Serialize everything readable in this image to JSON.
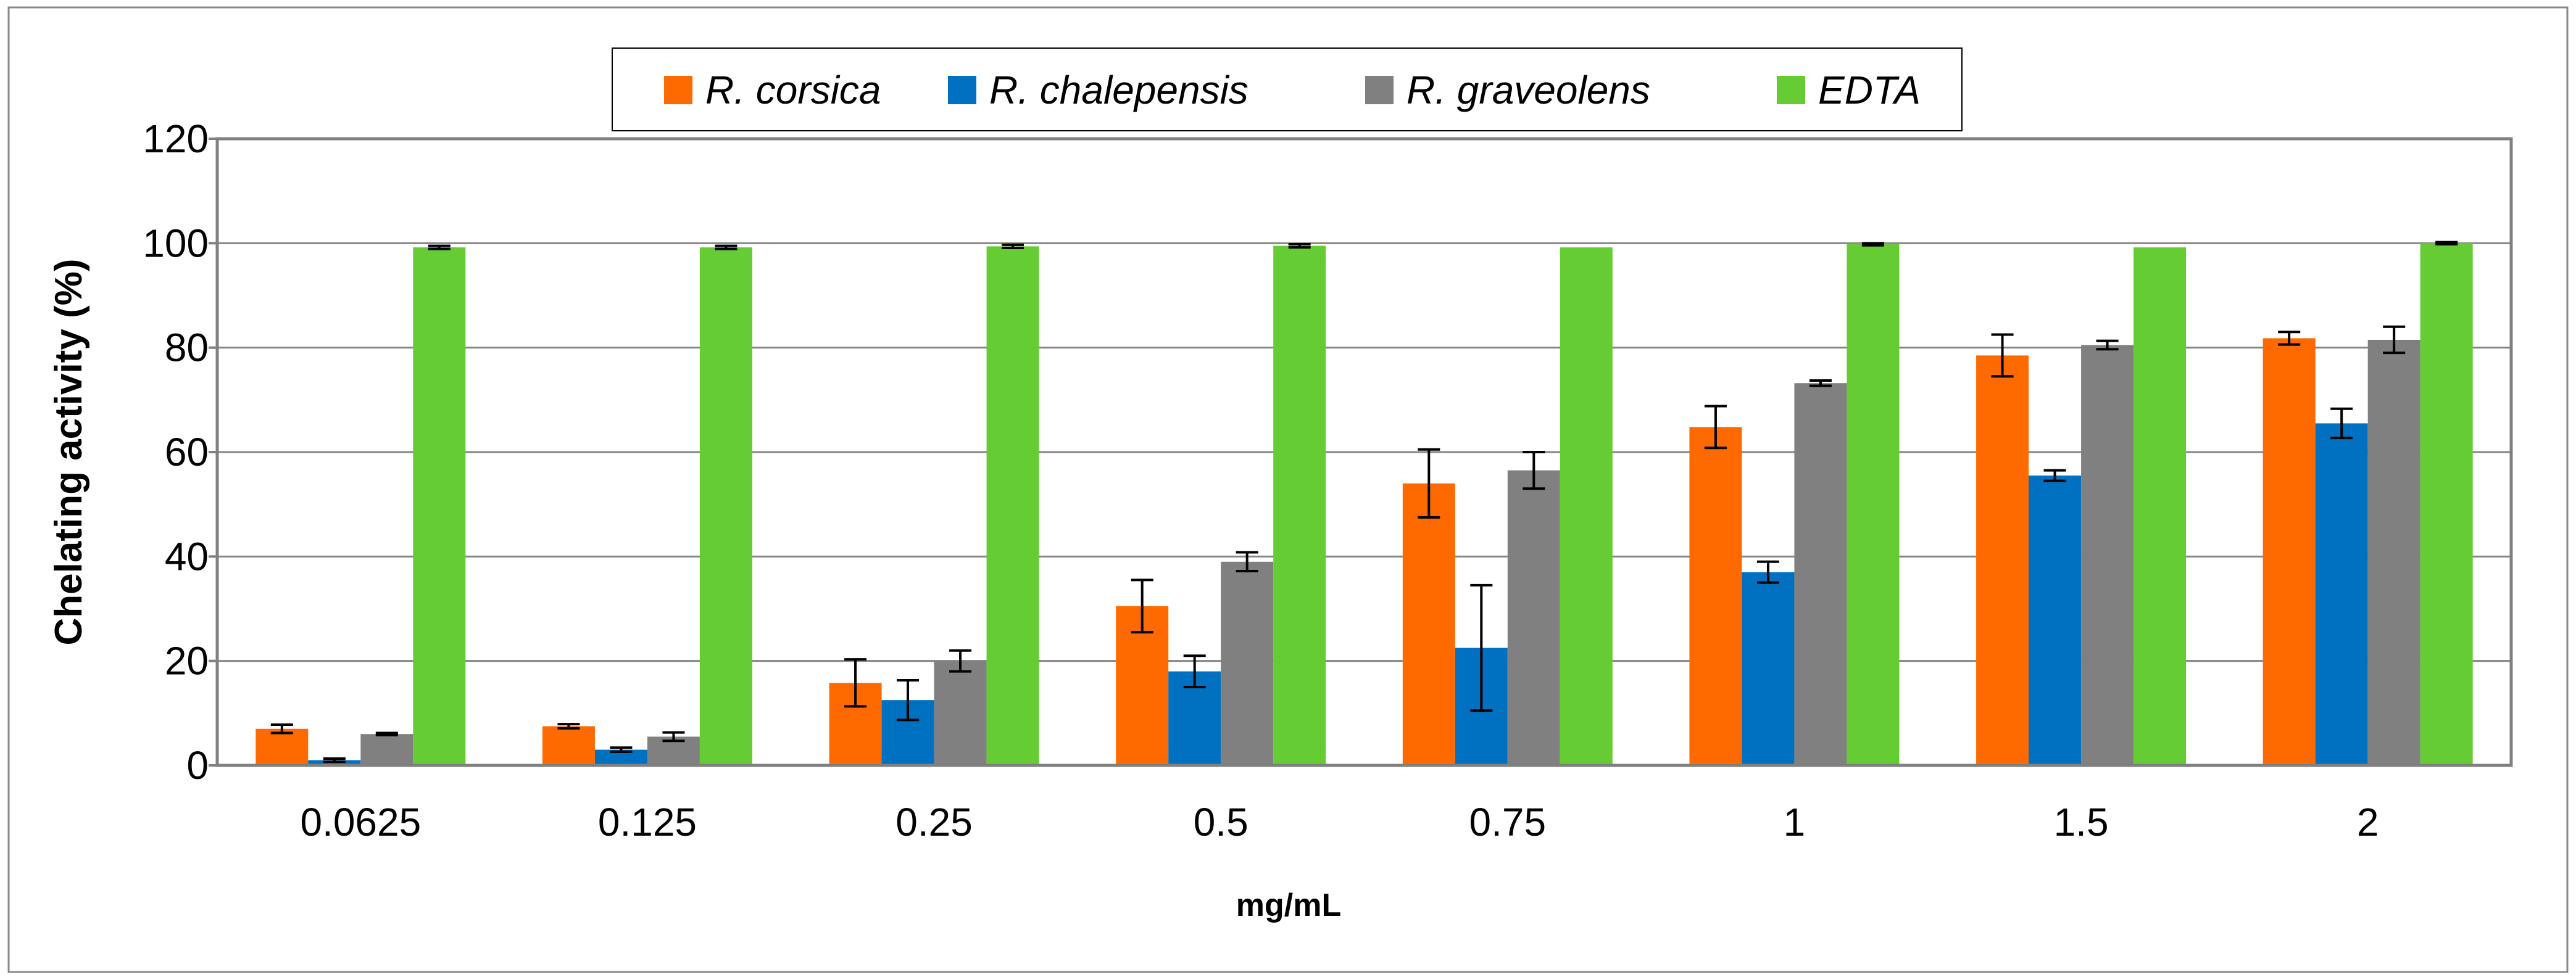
{
  "chart_data": {
    "type": "bar",
    "title": "",
    "xlabel": "mg/mL",
    "ylabel": "Chelating activity (%)",
    "ylim": [
      0,
      120
    ],
    "yticks": [
      "0",
      "20",
      "40",
      "60",
      "80",
      "100",
      "120"
    ],
    "grid": true,
    "legend_position": "top-center",
    "categories": [
      "0.0625",
      "0.125",
      "0.25",
      "0.5",
      "0.75",
      "1",
      "1.5",
      "2"
    ],
    "series": [
      {
        "name": "R. corsica",
        "color": "#FF6A00",
        "values": [
          7,
          7.5,
          15.8,
          30.5,
          54,
          64.8,
          78.5,
          81.8
        ],
        "errors": [
          0.8,
          0.4,
          4.5,
          5,
          6.5,
          4,
          4,
          1.2
        ]
      },
      {
        "name": "R. chalepensis",
        "color": "#0070C0",
        "values": [
          1,
          3,
          12.5,
          18,
          22.5,
          37,
          55.5,
          65.5
        ],
        "errors": [
          0.3,
          0.4,
          3.8,
          3,
          12,
          2,
          1,
          2.8
        ]
      },
      {
        "name": "R. graveolens",
        "color": "#808080",
        "values": [
          6,
          5.5,
          20,
          39,
          56.5,
          73.2,
          80.5,
          81.5
        ],
        "errors": [
          0.2,
          0.8,
          2,
          1.8,
          3.5,
          0.5,
          0.8,
          2.5
        ]
      },
      {
        "name": "EDTA",
        "color": "#66CC33",
        "values": [
          99.2,
          99.2,
          99.4,
          99.5,
          99.2,
          99.8,
          99.2,
          100
        ],
        "errors": [
          0.3,
          0.3,
          0.3,
          0.3,
          0,
          0.2,
          0,
          0.2
        ]
      }
    ]
  }
}
